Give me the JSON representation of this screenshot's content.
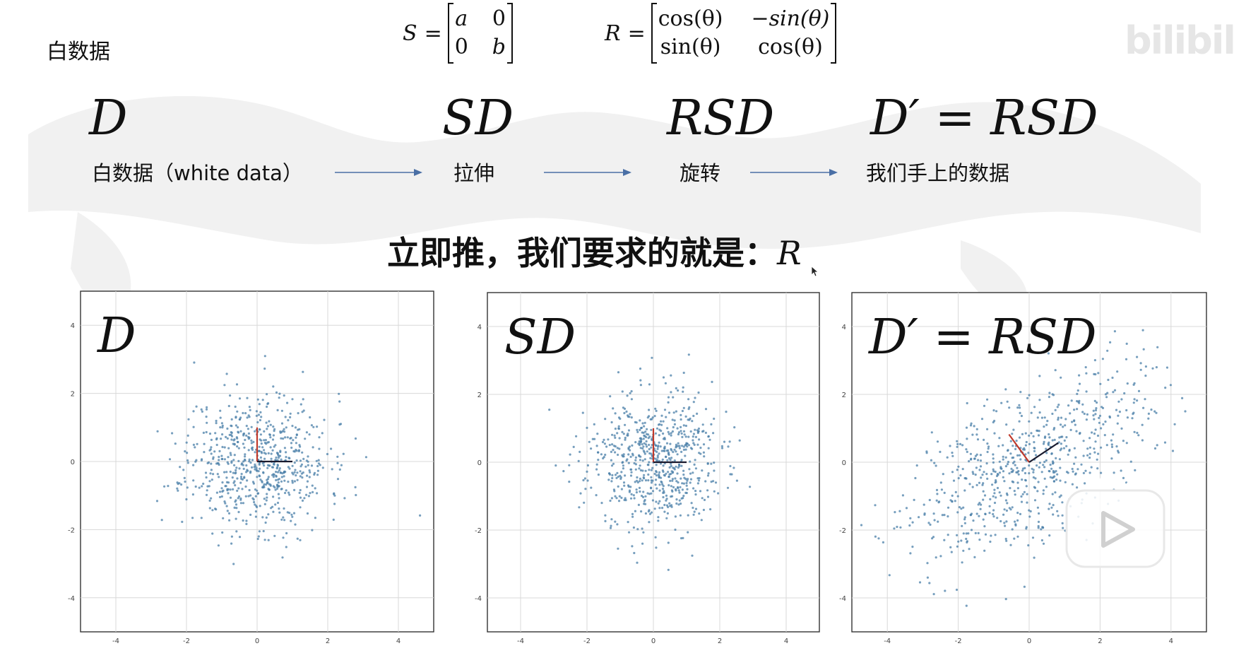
{
  "slide": {
    "title": "白数据",
    "watermark": "bilibili"
  },
  "formulas": {
    "S": {
      "lhs": "S",
      "eq": "=",
      "cells": [
        "a",
        "0",
        "0",
        "b"
      ]
    },
    "R": {
      "lhs": "R",
      "eq": "=",
      "cells": [
        "cos(θ)",
        "−sin(θ)",
        "sin(θ)",
        "cos(θ)"
      ]
    }
  },
  "pipeline": {
    "steps": [
      {
        "symbol": "D",
        "label": "白数据（white data）"
      },
      {
        "symbol": "SD",
        "label": "拉伸"
      },
      {
        "symbol": "RSD",
        "label": "旋转"
      },
      {
        "symbol": "D′ = RSD",
        "label": "我们手上的数据"
      }
    ]
  },
  "headline": {
    "text": "立即推，我们要求的就是：",
    "symbol": "R"
  },
  "colors": {
    "arrow": "#4a6fa5",
    "point": "#4a7fa8",
    "red_axis": "#c0392b",
    "dark_axis": "#1a1a2e",
    "grid": "#d8d8d8"
  },
  "chart_data": [
    {
      "type": "scatter",
      "title": "D",
      "xlim": [
        -5,
        5
      ],
      "ylim": [
        -5,
        5
      ],
      "xticks": [
        -4,
        -2,
        0,
        2,
        4
      ],
      "yticks": [
        -4,
        -2,
        0,
        2,
        4
      ],
      "grid": true,
      "distribution": {
        "sx": 1.0,
        "sy": 1.0,
        "theta_deg": 0,
        "n": 700,
        "seed": 11
      },
      "axes_vectors": [
        {
          "color": "red",
          "vector": [
            0,
            1
          ]
        },
        {
          "color": "dark",
          "vector": [
            1,
            0
          ]
        }
      ]
    },
    {
      "type": "scatter",
      "title": "SD",
      "xlim": [
        -5,
        5
      ],
      "ylim": [
        -5,
        5
      ],
      "xticks": [
        -4,
        -2,
        0,
        2,
        4
      ],
      "yticks": [
        -4,
        -2,
        0,
        2,
        4
      ],
      "grid": true,
      "distribution": {
        "sx": 1.0,
        "sy": 1.0,
        "theta_deg": 0,
        "n": 700,
        "seed": 23
      },
      "axes_vectors": [
        {
          "color": "red",
          "vector": [
            0,
            1
          ]
        },
        {
          "color": "dark",
          "vector": [
            1,
            0
          ]
        }
      ]
    },
    {
      "type": "scatter",
      "title": "D′ = RSD",
      "xlim": [
        -5,
        5
      ],
      "ylim": [
        -5,
        5
      ],
      "xticks": [
        -4,
        -2,
        0,
        2,
        4
      ],
      "yticks": [
        -4,
        -2,
        0,
        2,
        4
      ],
      "grid": true,
      "distribution": {
        "sx": 2.0,
        "sy": 1.0,
        "theta_deg": 35,
        "n": 700,
        "seed": 37
      },
      "axes_vectors": [
        {
          "color": "red",
          "vector": [
            -0.57,
            0.82
          ]
        },
        {
          "color": "dark",
          "vector": [
            0.82,
            0.57
          ]
        }
      ]
    }
  ]
}
